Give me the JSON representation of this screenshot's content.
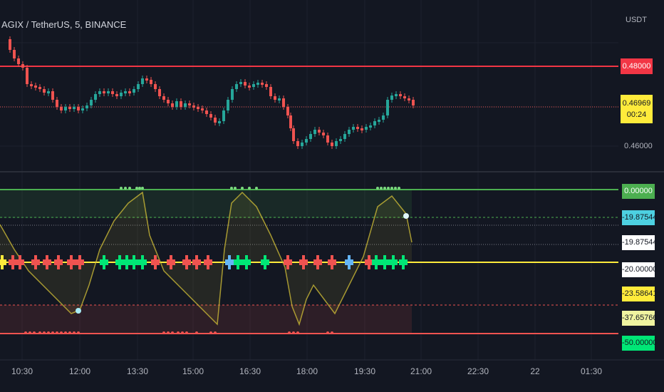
{
  "chart": {
    "title": "AGIX / TetherUS, 5, BINANCE",
    "currency": "USDT",
    "resistance_label": "0.48000",
    "last_price": "0.46969",
    "countdown": "00:24",
    "price_tick": "0.46000",
    "colors": {
      "up": "#26a69a",
      "down": "#ef5350",
      "resistance": "#f23645",
      "current": "#ffeb3b"
    }
  },
  "oscillator": {
    "tags": [
      {
        "text": "0.00000",
        "bg": "#4caf50",
        "fg": "#ffffff"
      },
      {
        "text": "-19.87544",
        "bg": "#4dd0e1",
        "fg": "#131722"
      },
      {
        "text": "-19.87544",
        "bg": "#ffffff",
        "fg": "#131722"
      },
      {
        "text": "-20.00000",
        "bg": "#ffffff",
        "fg": "#131722"
      },
      {
        "text": "-23.58641",
        "bg": "#ffeb3b",
        "fg": "#131722"
      },
      {
        "text": "-37.65766",
        "bg": "#f0f4a0",
        "fg": "#131722"
      },
      {
        "text": "-50.00000",
        "bg": "#00e676",
        "fg": "#131722"
      }
    ]
  },
  "time_axis": [
    "10:30",
    "12:00",
    "13:30",
    "15:00",
    "16:30",
    "18:00",
    "19:30",
    "21:00",
    "22:30",
    "22",
    "01:30"
  ]
}
